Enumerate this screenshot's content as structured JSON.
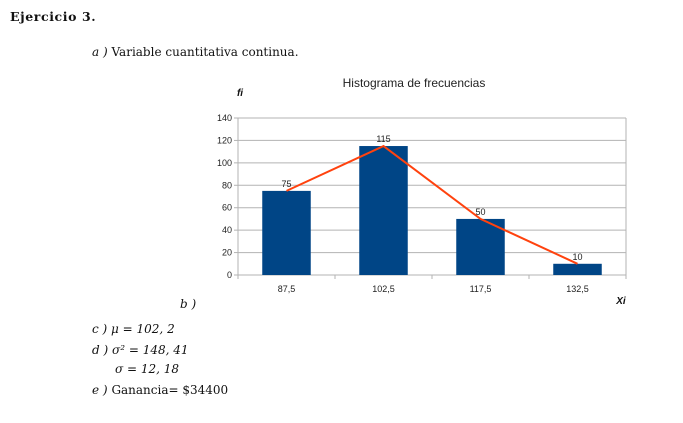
{
  "exercise": {
    "title": "Ejercicio 3."
  },
  "items": {
    "a": {
      "label": "a )",
      "text": "Variable cuantitativa continua."
    },
    "b": {
      "label": "b )"
    },
    "c": {
      "label": "c )",
      "text": "μ = 102, 2"
    },
    "d": {
      "label": "d )",
      "text1": "σ² = 148, 41",
      "text2": "σ = 12, 18"
    },
    "e": {
      "label": "e )",
      "text": "Ganancia= $34400"
    }
  },
  "colors": {
    "bar": "#004586",
    "line": "#ff420e",
    "grid": "#b3b3b3"
  },
  "chart_data": {
    "type": "bar",
    "title": "Histograma de frecuencias",
    "xlabel": "Xi",
    "ylabel": "fi",
    "categories": [
      "87,5",
      "102,5",
      "117,5",
      "132,5"
    ],
    "values": [
      75,
      115,
      50,
      10
    ],
    "ylim": [
      0,
      140
    ],
    "yticks": [
      0,
      20,
      40,
      60,
      80,
      100,
      120,
      140
    ],
    "grid": true,
    "overlay_line": {
      "type": "line",
      "values": [
        75,
        115,
        50,
        10
      ]
    }
  }
}
